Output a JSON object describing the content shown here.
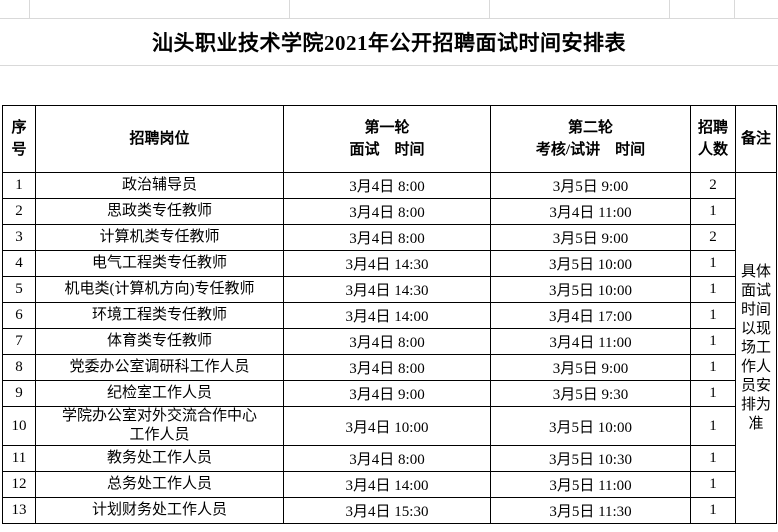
{
  "title": "汕头职业技术学院2021年公开招聘面试时间安排表",
  "colors": {
    "table_border": "#000000",
    "grid_line": "#d9d9d9",
    "background": "#ffffff",
    "text": "#000000"
  },
  "table": {
    "headers": {
      "index": "序\n号",
      "position": "招聘岗位",
      "round1": "第一轮\n面试　时间",
      "round2": "第二轮\n考核/试讲　时间",
      "headcount": "招聘\n人数",
      "remark": "备注"
    },
    "remark_note": "具体面试时间以现场工作人员安排为准",
    "rows": [
      {
        "no": "1",
        "position": "政治辅导员",
        "round1": "3月4日 8:00",
        "round2": "3月5日 9:00",
        "count": "2"
      },
      {
        "no": "2",
        "position": "思政类专任教师",
        "round1": "3月4日 8:00",
        "round2": "3月4日 11:00",
        "count": "1"
      },
      {
        "no": "3",
        "position": "计算机类专任教师",
        "round1": "3月4日 8:00",
        "round2": "3月5日 9:00",
        "count": "2"
      },
      {
        "no": "4",
        "position": "电气工程类专任教师",
        "round1": "3月4日 14:30",
        "round2": "3月5日 10:00",
        "count": "1"
      },
      {
        "no": "5",
        "position": "机电类(计算机方向)专任教师",
        "round1": "3月4日 14:30",
        "round2": "3月5日 10:00",
        "count": "1"
      },
      {
        "no": "6",
        "position": "环境工程类专任教师",
        "round1": "3月4日 14:00",
        "round2": "3月4日 17:00",
        "count": "1"
      },
      {
        "no": "7",
        "position": "体育类专任教师",
        "round1": "3月4日 8:00",
        "round2": "3月4日 11:00",
        "count": "1"
      },
      {
        "no": "8",
        "position": "党委办公室调研科工作人员",
        "round1": "3月4日 8:00",
        "round2": "3月5日 9:00",
        "count": "1"
      },
      {
        "no": "9",
        "position": "纪检室工作人员",
        "round1": "3月4日 9:00",
        "round2": "3月5日 9:30",
        "count": "1"
      },
      {
        "no": "10",
        "position": "学院办公室对外交流合作中心\n工作人员",
        "round1": "3月4日 10:00",
        "round2": "3月5日 10:00",
        "count": "1"
      },
      {
        "no": "11",
        "position": "教务处工作人员",
        "round1": "3月4日 8:00",
        "round2": "3月5日 10:30",
        "count": "1"
      },
      {
        "no": "12",
        "position": "总务处工作人员",
        "round1": "3月4日 14:00",
        "round2": "3月5日 11:00",
        "count": "1"
      },
      {
        "no": "13",
        "position": "计划财务处工作人员",
        "round1": "3月4日 15:30",
        "round2": "3月5日 11:30",
        "count": "1"
      }
    ]
  }
}
